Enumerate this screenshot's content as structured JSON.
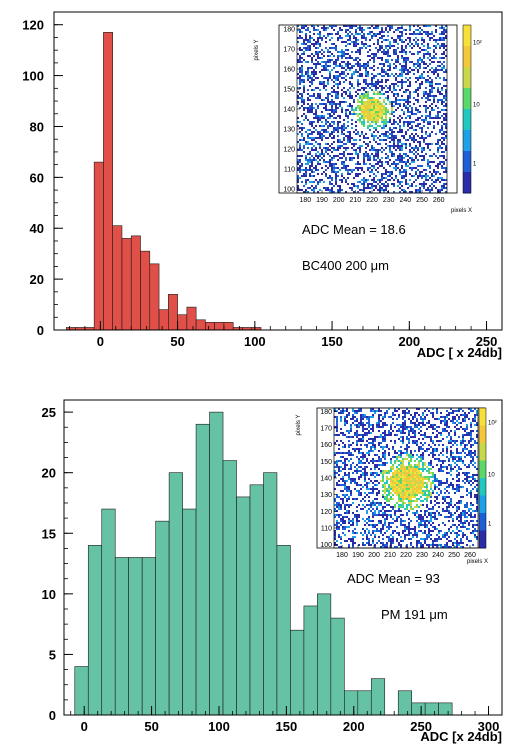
{
  "chart_data": [
    {
      "type": "bar",
      "xlabel": "ADC [ x 24db]",
      "ylabel": "",
      "xlim": [
        -30,
        260
      ],
      "ylim": [
        0,
        125
      ],
      "xticks": [
        0,
        50,
        100,
        150,
        200,
        250
      ],
      "yticks": [
        0,
        20,
        40,
        60,
        80,
        100,
        120
      ],
      "bin_width": 6,
      "bin_starts": [
        -22,
        -16,
        -10,
        -4,
        2,
        8,
        14,
        20,
        26,
        32,
        38,
        44,
        50,
        56,
        62,
        68,
        74,
        80,
        86,
        92,
        98
      ],
      "values": [
        1,
        1,
        1,
        66,
        117,
        41,
        36,
        37,
        31,
        26,
        8,
        14,
        6,
        9,
        4,
        3,
        3,
        3,
        1,
        1,
        1
      ],
      "fill": "#e05048",
      "annotations": [
        "ADC Mean = 18.6",
        "BC400  200 μm"
      ],
      "inset": {
        "type": "heatmap",
        "xlabel": "pixels X",
        "ylabel": "pixels Y",
        "xlim": [
          175,
          265
        ],
        "ylim": [
          98,
          182
        ],
        "xticks": [
          180,
          190,
          200,
          210,
          220,
          230,
          240,
          250,
          260
        ],
        "yticks": [
          100,
          110,
          120,
          130,
          140,
          150,
          160,
          170,
          180
        ],
        "colorbar_ticks": [
          "1",
          "10",
          "10²"
        ],
        "spot_center": [
          220,
          140
        ],
        "spot_radius_px": 8,
        "log_scale": true
      }
    },
    {
      "type": "bar",
      "xlabel": "ADC [x 24db]",
      "ylabel": "",
      "xlim": [
        -15,
        310
      ],
      "ylim": [
        0,
        26
      ],
      "xticks": [
        0,
        50,
        100,
        150,
        200,
        250,
        300
      ],
      "yticks": [
        0,
        5,
        10,
        15,
        20,
        25
      ],
      "bin_width": 10,
      "bin_starts": [
        -7,
        3,
        13,
        23,
        33,
        43,
        53,
        63,
        73,
        83,
        93,
        103,
        113,
        123,
        133,
        143,
        153,
        163,
        173,
        183,
        193,
        203,
        213,
        223,
        233,
        243,
        253,
        263,
        273
      ],
      "values": [
        4,
        14,
        17,
        13,
        13,
        13,
        16,
        20,
        17,
        24,
        25,
        21,
        18,
        19,
        20,
        14,
        7,
        9,
        10,
        8,
        2,
        2,
        3,
        0,
        2,
        1,
        1,
        1,
        0
      ],
      "fill": "#66c2a5",
      "annotations": [
        "ADC Mean = 93",
        "PM 191 μm"
      ],
      "inset": {
        "type": "heatmap",
        "xlabel": "pixels X",
        "ylabel": "pixels Y",
        "xlim": [
          175,
          265
        ],
        "ylim": [
          98,
          182
        ],
        "xticks": [
          180,
          190,
          200,
          210,
          220,
          230,
          240,
          250,
          260
        ],
        "yticks": [
          100,
          110,
          120,
          130,
          140,
          150,
          160,
          170,
          180
        ],
        "colorbar_ticks": [
          "1",
          "10",
          "10²"
        ],
        "spot_center": [
          220,
          138
        ],
        "spot_radius_px": 12,
        "log_scale": true
      }
    }
  ]
}
